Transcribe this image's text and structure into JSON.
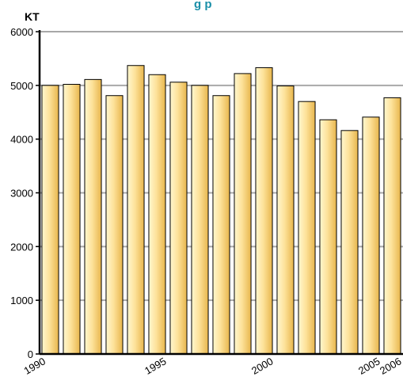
{
  "chart_data": {
    "type": "bar",
    "title_fragment": "g p",
    "ylabel": "KT",
    "ylim": [
      0,
      6000
    ],
    "yticks": [
      "0",
      "1000",
      "2000",
      "3000",
      "4000",
      "5000",
      "6000"
    ],
    "categories": [
      "1990",
      "1991",
      "1992",
      "1993",
      "1994",
      "1995",
      "1996",
      "1997",
      "1998",
      "1999",
      "2000",
      "2001",
      "2002",
      "2003",
      "2004",
      "2005",
      "2006"
    ],
    "xtick_labels": [
      "1990",
      "1995",
      "2000",
      "2005",
      "2006"
    ],
    "values": [
      5000,
      5020,
      5110,
      4810,
      5370,
      5200,
      5060,
      5000,
      4810,
      5220,
      5330,
      4990,
      4700,
      4360,
      4160,
      4410,
      4770
    ],
    "grid": true
  },
  "colors": {
    "bar_light": "#fff7cf",
    "bar_mid": "#fde29a",
    "bar_dark": "#e8b64d",
    "bar_edge": "#000000",
    "grid": "#a8a8a8",
    "title": "#1a8fa8"
  }
}
